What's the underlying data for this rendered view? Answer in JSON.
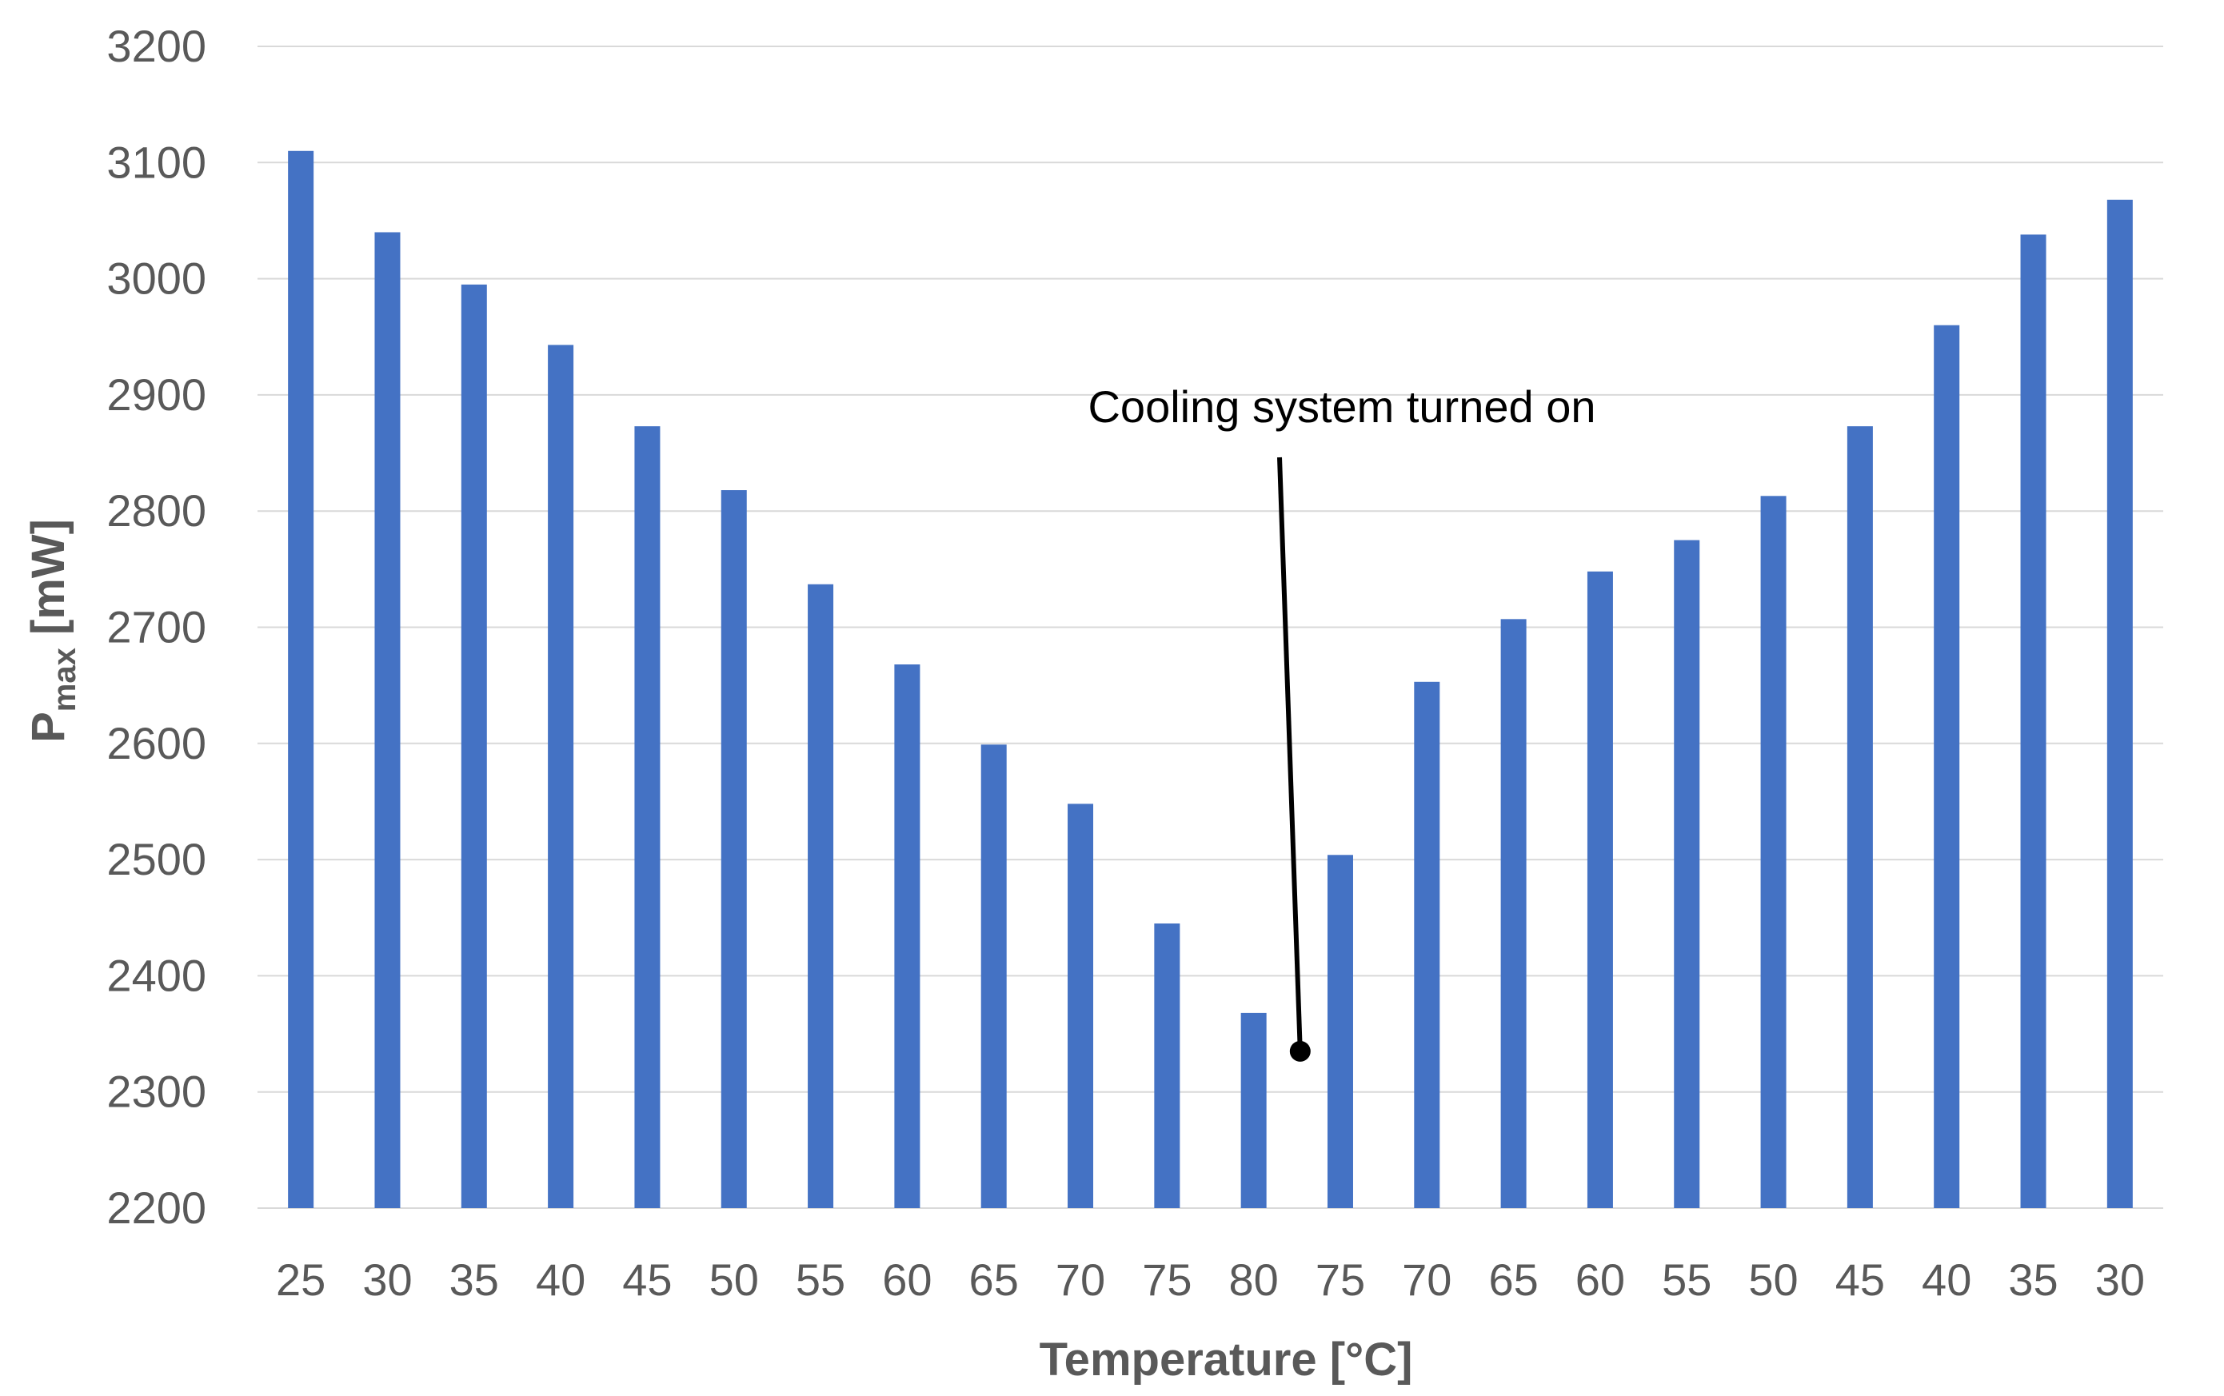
{
  "chart_data": {
    "type": "bar",
    "title": "",
    "xlabel": "Temperature [°C]",
    "ylabel_main": "P",
    "ylabel_sub": "max",
    "ylabel_unit": " [mW]",
    "ylim": [
      2200,
      3200
    ],
    "yticks": [
      2200,
      2300,
      2400,
      2500,
      2600,
      2700,
      2800,
      2900,
      3000,
      3100,
      3200
    ],
    "grid": true,
    "categories": [
      "25",
      "30",
      "35",
      "40",
      "45",
      "50",
      "55",
      "60",
      "65",
      "70",
      "75",
      "80",
      "75",
      "70",
      "65",
      "60",
      "55",
      "50",
      "45",
      "40",
      "35",
      "30"
    ],
    "series": [
      {
        "name": "Pmax",
        "color": "#4472c4",
        "values": [
          3110,
          3040,
          2995,
          2943,
          2873,
          2818,
          2737,
          2668,
          2599,
          2548,
          2445,
          2368,
          2504,
          2653,
          2707,
          2748,
          2775,
          2813,
          2873,
          2960,
          3038,
          3068
        ]
      }
    ],
    "annotation": {
      "text": "Cooling system turned on",
      "points_to_between": [
        11,
        12
      ],
      "target_value": 2335
    }
  }
}
